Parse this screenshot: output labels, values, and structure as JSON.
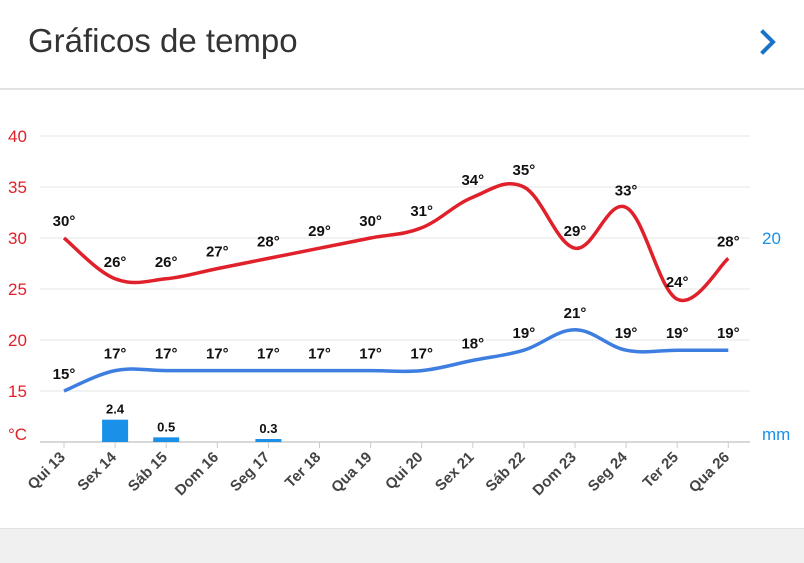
{
  "header": {
    "title": "Gráficos de tempo",
    "next_icon": "chevron-right-icon"
  },
  "colors": {
    "max": "#e0202a",
    "min": "#3d7ee0",
    "precip": "#1a90e8",
    "label": "#111111",
    "axis_left": "#e0202a",
    "axis_right": "#1a90e8",
    "grid": "#e6e6e6"
  },
  "chart_data": {
    "type": "line",
    "title": "Gráficos de tempo",
    "categories": [
      "Qui 13",
      "Sex 14",
      "Sáb 15",
      "Dom 16",
      "Seg 17",
      "Ter 18",
      "Qua 19",
      "Qui 20",
      "Sex 21",
      "Sáb 22",
      "Dom 23",
      "Seg 24",
      "Ter 25",
      "Qua 26"
    ],
    "series": [
      {
        "name": "max",
        "unit": "°C",
        "values": [
          30,
          26,
          26,
          27,
          28,
          29,
          30,
          31,
          34,
          35,
          29,
          33,
          24,
          28
        ],
        "labels": [
          "30°",
          "26°",
          "26°",
          "27°",
          "28°",
          "29°",
          "30°",
          "31°",
          "34°",
          "35°",
          "29°",
          "33°",
          "24°",
          "28°"
        ]
      },
      {
        "name": "min",
        "unit": "°C",
        "values": [
          15,
          17,
          17,
          17,
          17,
          17,
          17,
          17,
          18,
          19,
          21,
          19,
          19,
          19
        ],
        "labels": [
          "15°",
          "17°",
          "17°",
          "17°",
          "17°",
          "17°",
          "17°",
          "17°",
          "18°",
          "19°",
          "21°",
          "19°",
          "19°",
          "19°"
        ]
      },
      {
        "name": "precip",
        "type": "bar",
        "unit": "mm",
        "values": [
          0,
          2.4,
          0.5,
          0,
          0.3,
          0,
          0,
          0,
          0,
          0,
          0,
          0,
          0,
          0
        ],
        "labels": [
          "",
          "2.4",
          "0.5",
          "",
          "0.3",
          "",
          "",
          "",
          "",
          "",
          "",
          "",
          "",
          ""
        ]
      }
    ],
    "y_left": {
      "label": "°C",
      "ticks": [
        "40",
        "35",
        "30",
        "25",
        "20",
        "15"
      ],
      "tick_values": [
        40,
        35,
        30,
        25,
        20,
        15
      ],
      "range": [
        10,
        40
      ]
    },
    "y_right": {
      "label": "mm",
      "ticks": [
        "20"
      ],
      "tick_values": [
        20
      ],
      "range": [
        0,
        30
      ]
    },
    "grid": true
  }
}
